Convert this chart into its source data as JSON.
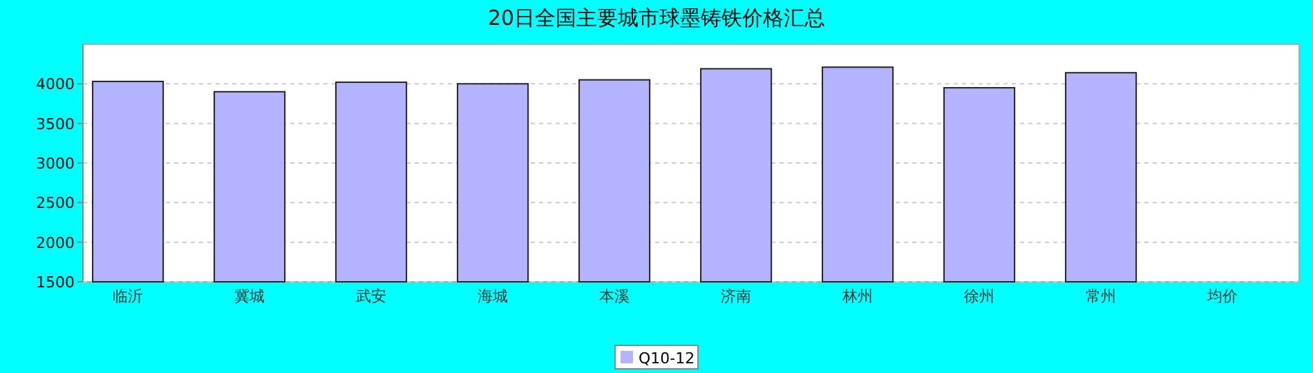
{
  "chart_data": {
    "type": "bar",
    "title": "20日全国主要城市球墨铸铁价格汇总",
    "categories": [
      "临沂",
      "冀城",
      "武安",
      "海城",
      "本溪",
      "济南",
      "林州",
      "徐州",
      "常州",
      "均价"
    ],
    "series": [
      {
        "name": "Q10-12",
        "color": "#b3b3ff",
        "values": [
          4030,
          3900,
          4020,
          4000,
          4050,
          4190,
          4210,
          3950,
          4140,
          null
        ]
      }
    ],
    "ylim": [
      1500,
      4500
    ],
    "yticks": [
      1500,
      2000,
      2500,
      3000,
      3500,
      4000
    ],
    "grid": "y",
    "legend": "bottom"
  }
}
